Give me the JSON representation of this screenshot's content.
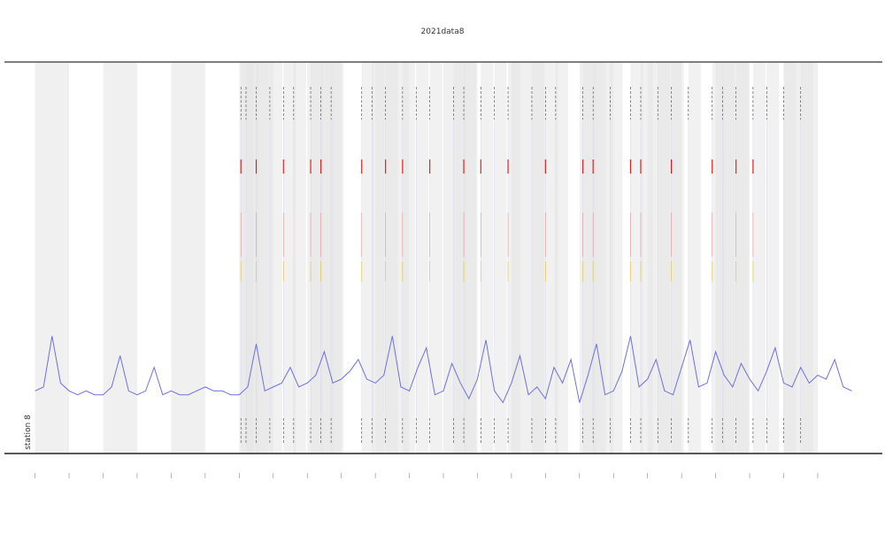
{
  "chart_data": {
    "type": "line",
    "title": "2021data8",
    "x_step": 0.25,
    "series": [
      {
        "name": "station 8",
        "color": "#6f6fe0",
        "values": [
          16,
          17,
          30,
          18,
          16,
          15,
          16,
          15,
          15,
          17,
          25,
          16,
          15,
          16,
          22,
          15,
          16,
          15,
          15,
          16,
          17,
          16,
          16,
          15,
          15,
          17,
          28,
          16,
          17,
          18,
          22,
          17,
          18,
          20,
          26,
          18,
          19,
          21,
          24,
          19,
          18,
          20,
          30,
          17,
          16,
          22,
          27,
          15,
          16,
          23,
          18,
          14,
          19,
          29,
          16,
          13,
          18,
          25,
          15,
          17,
          14,
          22,
          18,
          24,
          13,
          20,
          28,
          15,
          16,
          21,
          30,
          17,
          19,
          24,
          16,
          15,
          22,
          29,
          17,
          18,
          26,
          20,
          17,
          23,
          19,
          16,
          21,
          27,
          18,
          17,
          22,
          18,
          20,
          19,
          24,
          17,
          16
        ]
      }
    ],
    "xlim": [
      -0.9,
      24.9
    ],
    "ylim": [
      0,
      100
    ],
    "xticks": [
      0,
      1,
      2,
      3,
      4,
      5,
      6,
      7,
      8,
      9,
      10,
      11,
      12,
      13,
      14,
      15,
      16,
      17,
      18,
      19,
      20,
      21,
      22,
      23
    ],
    "shaded_bands": [
      [
        0,
        1
      ],
      [
        2,
        3
      ],
      [
        4,
        5
      ],
      [
        6,
        7
      ],
      [
        8,
        9
      ],
      [
        10,
        11
      ],
      [
        12,
        13
      ],
      [
        14,
        15
      ],
      [
        16,
        17
      ],
      [
        18,
        19
      ],
      [
        20,
        21
      ],
      [
        22,
        23
      ]
    ],
    "event_x": [
      6.05,
      6.2,
      6.5,
      6.9,
      7.3,
      7.6,
      8.1,
      8.4,
      8.7,
      9.6,
      9.9,
      10.3,
      10.8,
      11.2,
      11.6,
      12.3,
      12.6,
      13.1,
      13.5,
      13.9,
      14.6,
      15.0,
      15.3,
      16.1,
      16.4,
      16.9,
      17.5,
      17.8,
      18.3,
      18.7,
      19.2,
      19.9,
      20.2,
      20.6,
      21.1,
      21.5,
      22.0,
      22.5
    ],
    "red_event_x": [
      6.05,
      6.5,
      7.3,
      8.1,
      8.4,
      9.6,
      10.3,
      10.8,
      11.6,
      12.6,
      13.1,
      13.9,
      15.0,
      16.1,
      16.4,
      17.5,
      17.8,
      18.7,
      19.9,
      20.6,
      21.1
    ]
  }
}
